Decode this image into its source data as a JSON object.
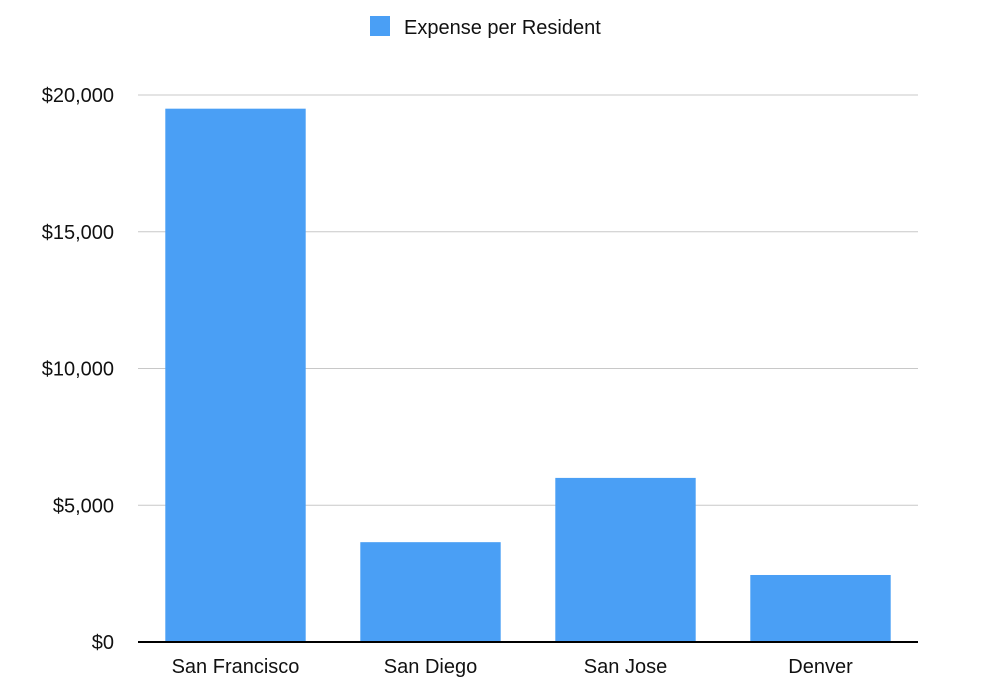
{
  "chart_data": {
    "type": "bar",
    "title": "",
    "xlabel": "",
    "ylabel": "",
    "categories": [
      "San Francisco",
      "San Diego",
      "San Jose",
      "Denver"
    ],
    "series": [
      {
        "name": "Expense per Resident",
        "values": [
          19500,
          3650,
          6000,
          2450
        ],
        "color": "#4a9ff5"
      }
    ],
    "ylim": [
      0,
      20000
    ],
    "yticks": [
      0,
      5000,
      10000,
      15000,
      20000
    ],
    "ytick_labels": [
      "$0",
      "$5,000",
      "$10,000",
      "$15,000",
      "$20,000"
    ],
    "grid": true,
    "legend_position": "top-center"
  }
}
